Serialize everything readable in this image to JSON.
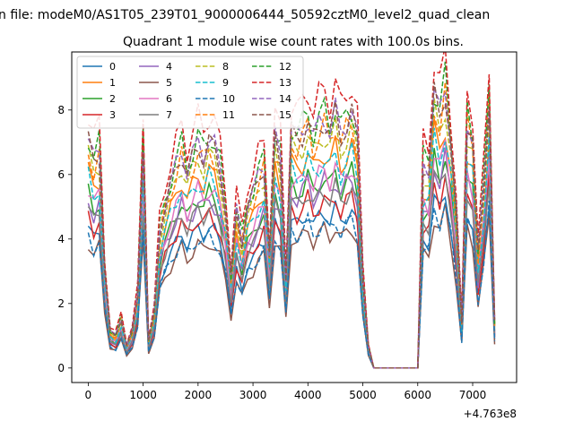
{
  "figure": {
    "suptitle": "n file: modeM0/AS1T05_239T01_9000006444_50592cztM0_level2_quad_clean",
    "title": "Quadrant 1 module wise count rates with 100.0s bins.",
    "offset_label": "+4.763e8"
  },
  "chart_data": {
    "type": "line",
    "title": "Quadrant 1 module wise count rates with 100.0s bins.",
    "xlabel": "",
    "ylabel": "",
    "x_offset": 476300000,
    "xlim": [
      -300,
      7800
    ],
    "ylim": [
      -0.45,
      9.8
    ],
    "xticks": [
      0,
      1000,
      2000,
      3000,
      4000,
      5000,
      6000,
      7000
    ],
    "yticks": [
      0,
      2,
      4,
      6,
      8
    ],
    "grid": false,
    "legend_loc": "upper left",
    "legend_ncol": 4,
    "x": [
      0,
      100,
      200,
      300,
      400,
      500,
      600,
      700,
      800,
      900,
      1000,
      1100,
      1200,
      1300,
      1400,
      1500,
      1600,
      1700,
      1800,
      1900,
      2000,
      2100,
      2200,
      2300,
      2400,
      2500,
      2600,
      2700,
      2800,
      2900,
      3000,
      3100,
      3200,
      3300,
      3400,
      3500,
      3600,
      3700,
      3800,
      3900,
      4000,
      4100,
      4200,
      4300,
      4400,
      4500,
      4600,
      4700,
      4800,
      4900,
      5000,
      5100,
      5200,
      5300,
      5400,
      5500,
      5600,
      5700,
      5800,
      5900,
      6000,
      6100,
      6200,
      6300,
      6400,
      6500,
      6600,
      6700,
      6800,
      6900,
      7000,
      7100,
      7200,
      7300,
      7400
    ],
    "base": [
      5.0,
      4.5,
      4.8,
      2.2,
      0.8,
      0.7,
      1.1,
      0.5,
      0.8,
      1.6,
      5.0,
      0.6,
      1.2,
      3.0,
      3.6,
      4.0,
      4.4,
      4.8,
      4.3,
      4.6,
      4.9,
      4.7,
      5.0,
      4.8,
      4.4,
      3.5,
      2.0,
      3.4,
      2.8,
      3.6,
      3.8,
      4.2,
      4.5,
      2.5,
      5.0,
      4.6,
      2.0,
      5.2,
      5.0,
      5.2,
      5.5,
      5.0,
      5.3,
      5.5,
      5.2,
      5.6,
      5.1,
      5.4,
      5.6,
      5.0,
      2.0,
      0.5,
      0,
      0,
      0,
      0,
      0,
      0,
      0,
      0,
      0,
      4.5,
      4.4,
      6.0,
      5.5,
      6.2,
      5.0,
      3.4,
      1.0,
      5.5,
      5.0,
      2.5,
      4.0,
      6.0,
      1.0
    ],
    "series": [
      {
        "name": "0",
        "color": "#1f77b4",
        "dash": false,
        "f": 0.88
      },
      {
        "name": "1",
        "color": "#ff7f0e",
        "dash": false,
        "f": 1.22
      },
      {
        "name": "2",
        "color": "#2ca02c",
        "dash": false,
        "f": 1.08
      },
      {
        "name": "3",
        "color": "#d62728",
        "dash": false,
        "f": 0.95
      },
      {
        "name": "4",
        "color": "#9467bd",
        "dash": false,
        "f": 1.05
      },
      {
        "name": "5",
        "color": "#8c564b",
        "dash": false,
        "f": 0.78
      },
      {
        "name": "6",
        "color": "#e377c2",
        "dash": false,
        "f": 1.12
      },
      {
        "name": "7",
        "color": "#7f7f7f",
        "dash": false,
        "f": 1.0
      },
      {
        "name": "8",
        "color": "#bcbd22",
        "dash": true,
        "f": 1.32
      },
      {
        "name": "9",
        "color": "#17becf",
        "dash": true,
        "f": 1.18
      },
      {
        "name": "10",
        "color": "#1f77b4",
        "dash": true,
        "f": 0.82
      },
      {
        "name": "11",
        "color": "#ff7f0e",
        "dash": true,
        "f": 1.36
      },
      {
        "name": "12",
        "color": "#2ca02c",
        "dash": true,
        "f": 1.45
      },
      {
        "name": "13",
        "color": "#d62728",
        "dash": true,
        "f": 1.58
      },
      {
        "name": "14",
        "color": "#9467bd",
        "dash": true,
        "f": 1.42
      },
      {
        "name": "15",
        "color": "#8c564b",
        "dash": true,
        "f": 1.4
      }
    ]
  }
}
